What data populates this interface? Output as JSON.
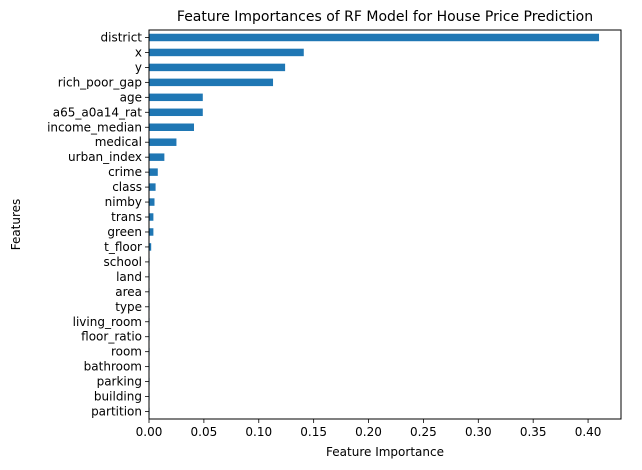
{
  "chart_data": {
    "type": "bar",
    "orientation": "horizontal",
    "title": "Feature Importances of RF Model for House Price Prediction",
    "xlabel": "Feature Importance",
    "ylabel": "Features",
    "xlim": [
      0.0,
      0.43
    ],
    "xticks": [
      "0.00",
      "0.05",
      "0.10",
      "0.15",
      "0.20",
      "0.25",
      "0.30",
      "0.35",
      "0.40"
    ],
    "grid": false,
    "bar_color": "#1f77b4",
    "categories": [
      "district",
      "x",
      "y",
      "rich_poor_gap",
      "age",
      "a65_a0a14_rat",
      "income_median",
      "medical",
      "urban_index",
      "crime",
      "class",
      "nimby",
      "trans",
      "green",
      "t_floor",
      "school",
      "land",
      "area",
      "type",
      "living_room",
      "floor_ratio",
      "room",
      "bathroom",
      "parking",
      "building",
      "partition"
    ],
    "values": [
      0.41,
      0.141,
      0.124,
      0.113,
      0.049,
      0.049,
      0.041,
      0.025,
      0.014,
      0.008,
      0.006,
      0.005,
      0.004,
      0.004,
      0.002,
      0.0005,
      0.0004,
      0.0003,
      0.0002,
      0.0001,
      0.0001,
      0.0001,
      0.0001,
      0.0001,
      0.0001,
      0.0001
    ]
  }
}
